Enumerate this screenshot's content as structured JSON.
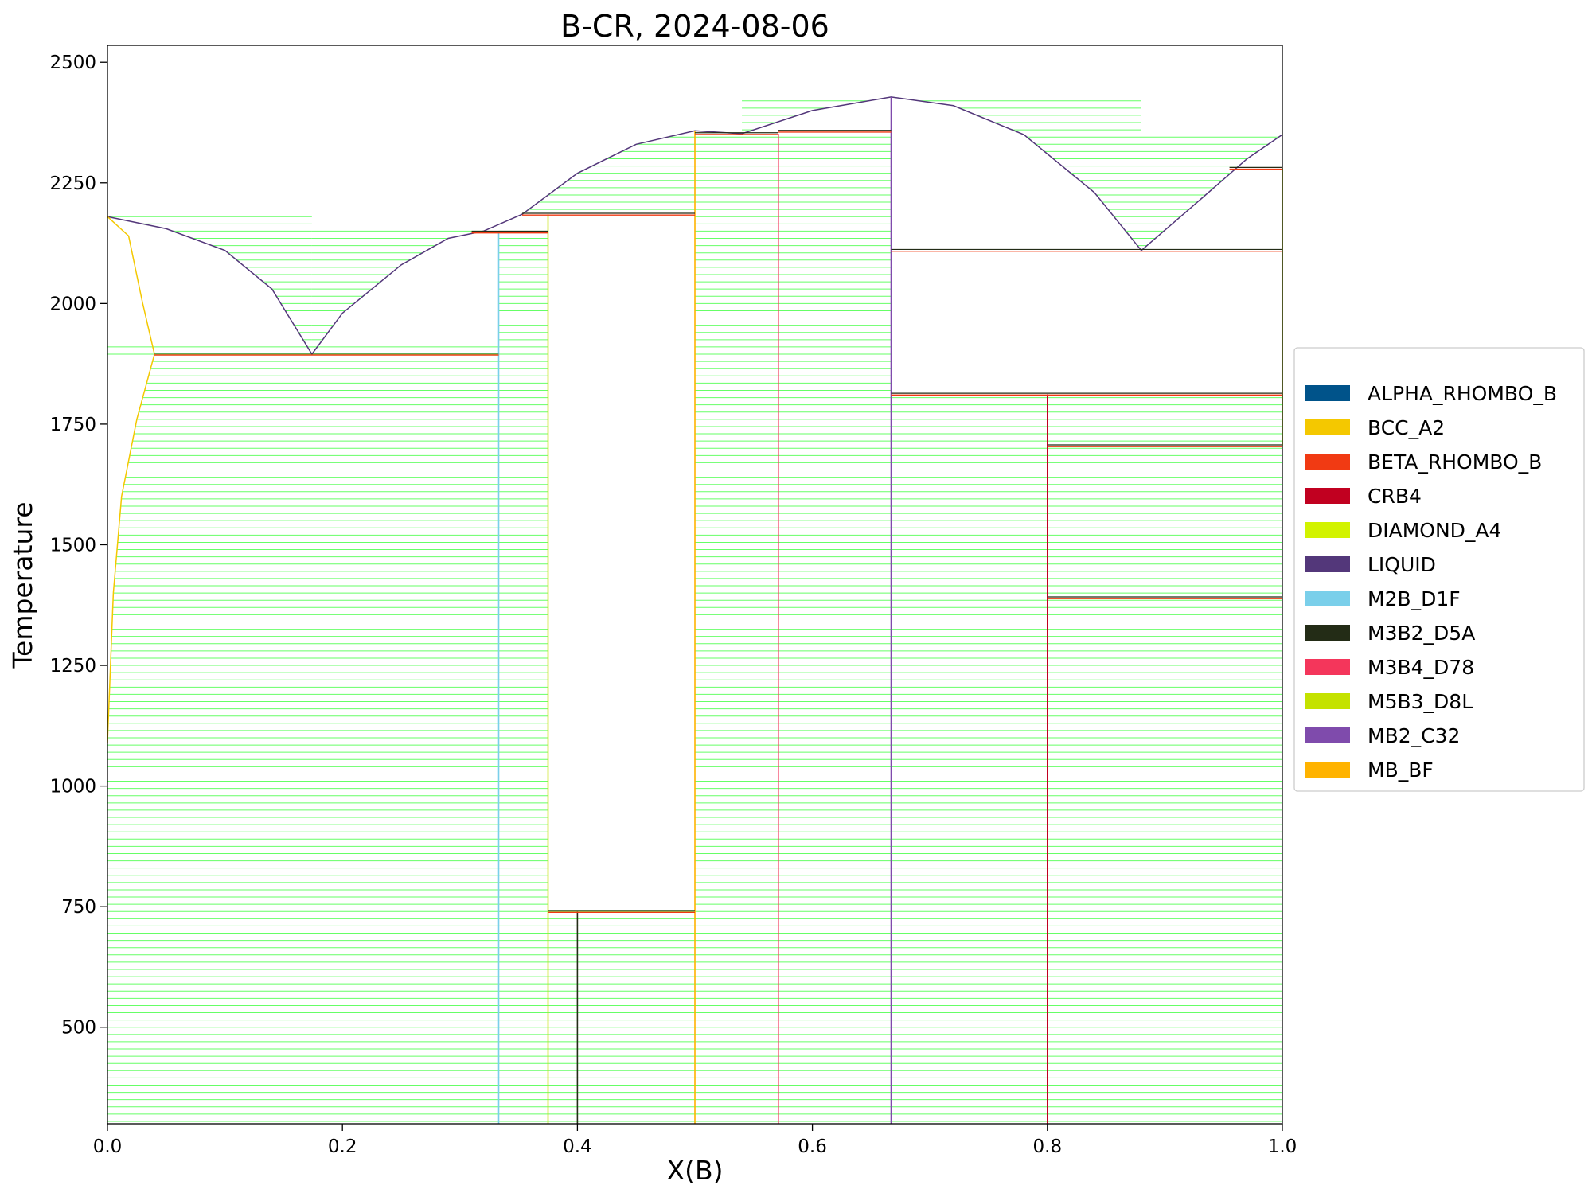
{
  "chart_data": {
    "type": "line",
    "title": "B-CR, 2024-08-06",
    "xlabel": "X(B)",
    "ylabel": "Temperature",
    "xlim": [
      0,
      1
    ],
    "ylim": [
      300,
      2535
    ],
    "x_ticks": [
      {
        "value": 0.0,
        "label": "0.0"
      },
      {
        "value": 0.2,
        "label": "0.2"
      },
      {
        "value": 0.4,
        "label": "0.4"
      },
      {
        "value": 0.6,
        "label": "0.6"
      },
      {
        "value": 0.8,
        "label": "0.8"
      },
      {
        "value": 1.0,
        "label": "1.0"
      }
    ],
    "y_ticks": [
      {
        "value": 500,
        "label": "500"
      },
      {
        "value": 750,
        "label": "750"
      },
      {
        "value": 1000,
        "label": "1000"
      },
      {
        "value": 1250,
        "label": "1250"
      },
      {
        "value": 1500,
        "label": "1500"
      },
      {
        "value": 1750,
        "label": "1750"
      },
      {
        "value": 2000,
        "label": "2000"
      },
      {
        "value": 2250,
        "label": "2250"
      },
      {
        "value": 2500,
        "label": "2500"
      }
    ],
    "grid": false,
    "legend_position": "center-right (outside plot)",
    "legend": [
      {
        "name": "ALPHA_RHOMBO_B",
        "color": "#00538A"
      },
      {
        "name": "BCC_A2",
        "color": "#F4C800"
      },
      {
        "name": "BETA_RHOMBO_B",
        "color": "#F13A13"
      },
      {
        "name": "CRB4",
        "color": "#C10020"
      },
      {
        "name": "DIAMOND_A4",
        "color": "#D2F300"
      },
      {
        "name": "LIQUID",
        "color": "#53377A"
      },
      {
        "name": "M2B_D1F",
        "color": "#7ACFEA"
      },
      {
        "name": "M3B2_D5A",
        "color": "#232C16"
      },
      {
        "name": "M3B4_D78",
        "color": "#F4365B"
      },
      {
        "name": "M5B3_D8L",
        "color": "#C4E200"
      },
      {
        "name": "MB2_C32",
        "color": "#7F4BAC"
      },
      {
        "name": "MB_BF",
        "color": "#FFB300"
      }
    ],
    "tie_line_color": "#66FF66",
    "liquidus": [
      [
        0.0,
        2180
      ],
      [
        0.05,
        2155
      ],
      [
        0.1,
        2110
      ],
      [
        0.14,
        2030
      ],
      [
        0.174,
        1895
      ],
      [
        0.2,
        1980
      ],
      [
        0.25,
        2080
      ],
      [
        0.29,
        2135
      ],
      [
        0.32,
        2150
      ],
      [
        0.353,
        2185
      ],
      [
        0.4,
        2270
      ],
      [
        0.45,
        2330
      ],
      [
        0.5,
        2358
      ],
      [
        0.54,
        2352
      ],
      [
        0.6,
        2400
      ],
      [
        0.667,
        2428
      ],
      [
        0.72,
        2410
      ],
      [
        0.78,
        2350
      ],
      [
        0.84,
        2230
      ],
      [
        0.88,
        2110
      ],
      [
        0.93,
        2215
      ],
      [
        0.97,
        2300
      ],
      [
        1.0,
        2350
      ]
    ],
    "solvus_bcc": [
      [
        0.0,
        1090
      ],
      [
        0.005,
        1400
      ],
      [
        0.012,
        1600
      ],
      [
        0.025,
        1760
      ],
      [
        0.04,
        1895
      ],
      [
        0.03,
        2000
      ],
      [
        0.018,
        2140
      ],
      [
        0.0,
        2180
      ]
    ],
    "vertical_phase_lines": [
      {
        "x": 0.333,
        "y0": 300,
        "y1": 2150,
        "phase": "M2B_D1F"
      },
      {
        "x": 0.375,
        "y0": 300,
        "y1": 2185,
        "phase": "M5B3_D8L"
      },
      {
        "x": 0.4,
        "y0": 300,
        "y1": 740,
        "phase": "M3B2_D5A"
      },
      {
        "x": 0.5,
        "y0": 300,
        "y1": 2358,
        "phase": "MB_BF"
      },
      {
        "x": 0.571,
        "y0": 300,
        "y1": 2352,
        "phase": "M3B4_D78"
      },
      {
        "x": 0.667,
        "y0": 300,
        "y1": 2428,
        "phase": "MB2_C32"
      },
      {
        "x": 0.8,
        "y0": 300,
        "y1": 1812,
        "phase": "CRB4"
      },
      {
        "x": 1.0,
        "y0": 1705,
        "y1": 2280,
        "phase": "DIAMOND_A4"
      }
    ],
    "invariant_lines": [
      {
        "x0": 0.04,
        "x1": 0.333,
        "y": 1895
      },
      {
        "x0": 0.31,
        "x1": 0.375,
        "y": 2148
      },
      {
        "x0": 0.353,
        "x1": 0.5,
        "y": 2185
      },
      {
        "x0": 0.375,
        "x1": 0.5,
        "y": 740
      },
      {
        "x0": 0.5,
        "x1": 0.571,
        "y": 2352
      },
      {
        "x0": 0.571,
        "x1": 0.667,
        "y": 2357
      },
      {
        "x0": 0.667,
        "x1": 1.0,
        "y": 2110
      },
      {
        "x0": 0.667,
        "x1": 1.0,
        "y": 1812
      },
      {
        "x0": 0.8,
        "x1": 1.0,
        "y": 1705
      },
      {
        "x0": 0.8,
        "x1": 1.0,
        "y": 1390
      },
      {
        "x0": 0.955,
        "x1": 1.0,
        "y": 2280
      }
    ]
  }
}
